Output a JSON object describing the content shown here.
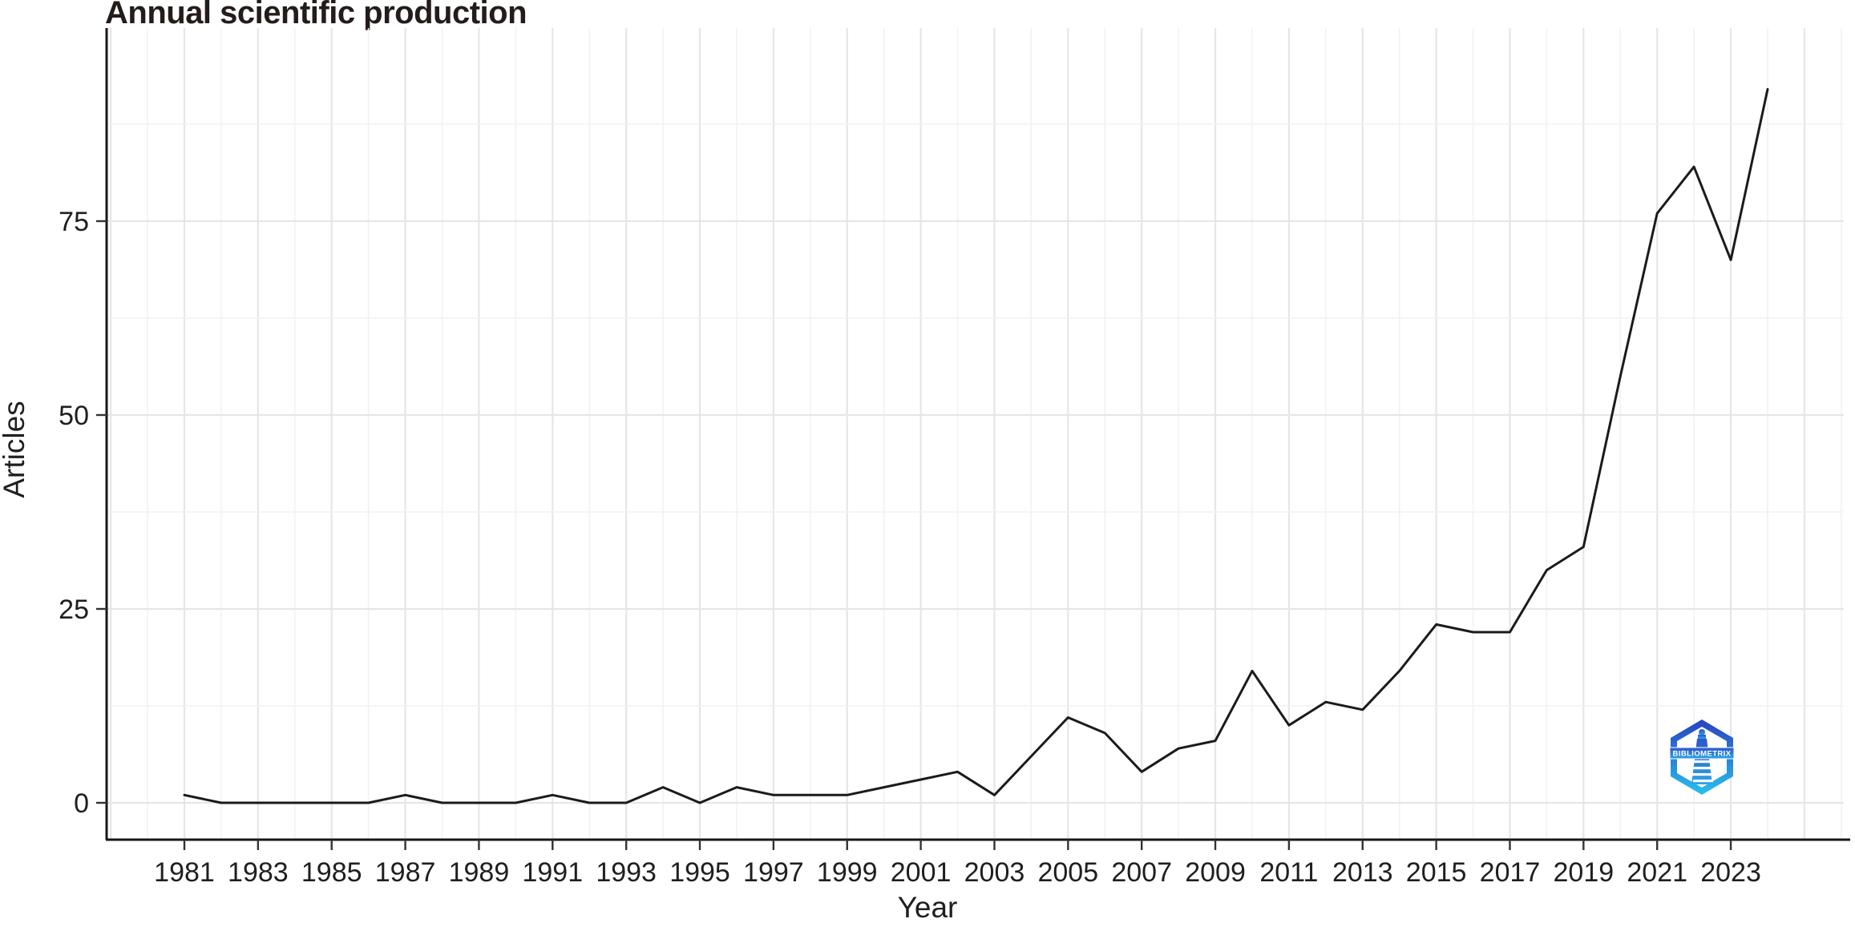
{
  "title": "Annual scientific production",
  "axes": {
    "x_title": "Year",
    "y_title": "Articles"
  },
  "chart_data": {
    "type": "line",
    "title": "Annual scientific production",
    "xlabel": "Year",
    "ylabel": "Articles",
    "series_name": "Articles",
    "x": [
      1981,
      1982,
      1983,
      1984,
      1985,
      1986,
      1987,
      1988,
      1989,
      1990,
      1991,
      1992,
      1993,
      1994,
      1995,
      1996,
      1997,
      1998,
      1999,
      2000,
      2001,
      2002,
      2003,
      2004,
      2005,
      2006,
      2007,
      2008,
      2009,
      2010,
      2011,
      2012,
      2013,
      2014,
      2015,
      2016,
      2017,
      2018,
      2019,
      2020,
      2021,
      2022,
      2023,
      2024
    ],
    "values": [
      1,
      0,
      0,
      0,
      0,
      0,
      1,
      0,
      0,
      0,
      1,
      0,
      0,
      2,
      0,
      2,
      1,
      1,
      1,
      2,
      3,
      4,
      1,
      6,
      11,
      9,
      4,
      7,
      8,
      17,
      10,
      13,
      12,
      17,
      23,
      22,
      22,
      30,
      33,
      55,
      76,
      82,
      70,
      92
    ],
    "x_tick_years": [
      1981,
      1983,
      1985,
      1987,
      1989,
      1991,
      1993,
      1995,
      1997,
      1999,
      2001,
      2003,
      2005,
      2007,
      2009,
      2011,
      2013,
      2015,
      2017,
      2019,
      2021,
      2023
    ],
    "y_ticks": [
      0,
      25,
      50,
      75
    ],
    "y_minor_ticks": [
      12.5,
      37.5,
      62.5,
      87.5
    ],
    "xlim": [
      1978.9,
      2026.1
    ],
    "ylim": [
      -4.6,
      96.6
    ],
    "grid": "major+minor",
    "legend": "none",
    "line_color": "#1b1b1b",
    "background": "#ffffff",
    "text_color": "#1f1f1f"
  },
  "logo": {
    "label": "BIBLIOMETRIX"
  }
}
